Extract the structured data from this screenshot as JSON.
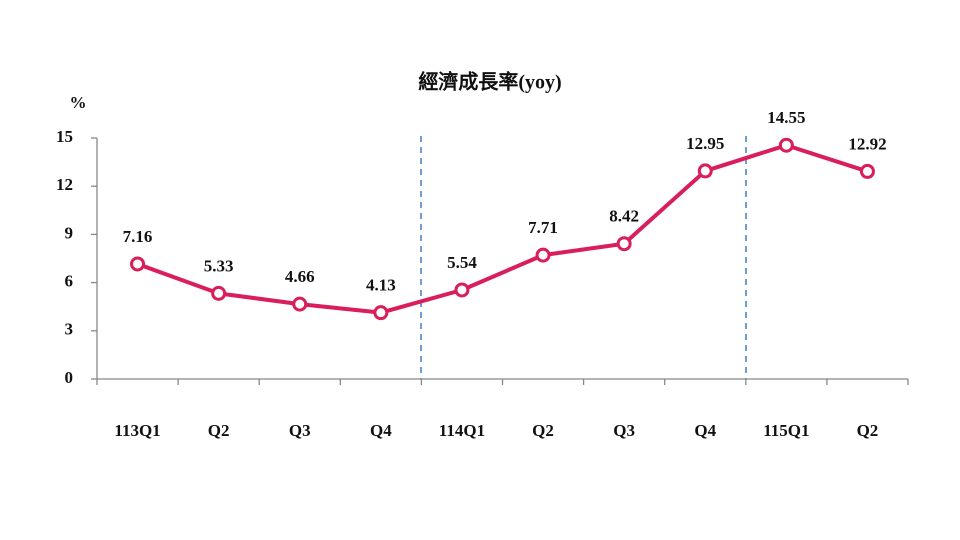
{
  "chart_data": {
    "type": "line",
    "title": "經濟成長率(yoy)",
    "y_label": "%",
    "categories": [
      "113Q1",
      "Q2",
      "Q3",
      "Q4",
      "114Q1",
      "Q2",
      "Q3",
      "Q4",
      "115Q1",
      "Q2"
    ],
    "series": [
      {
        "name": "經濟成長率",
        "color": "#d91e5b",
        "values": [
          7.16,
          5.33,
          4.66,
          4.13,
          5.54,
          7.71,
          8.42,
          12.95,
          14.55,
          12.92
        ]
      }
    ],
    "ylim": [
      0,
      15
    ],
    "yticks": [
      0,
      3,
      6,
      9,
      12,
      15
    ],
    "grid": false
  }
}
